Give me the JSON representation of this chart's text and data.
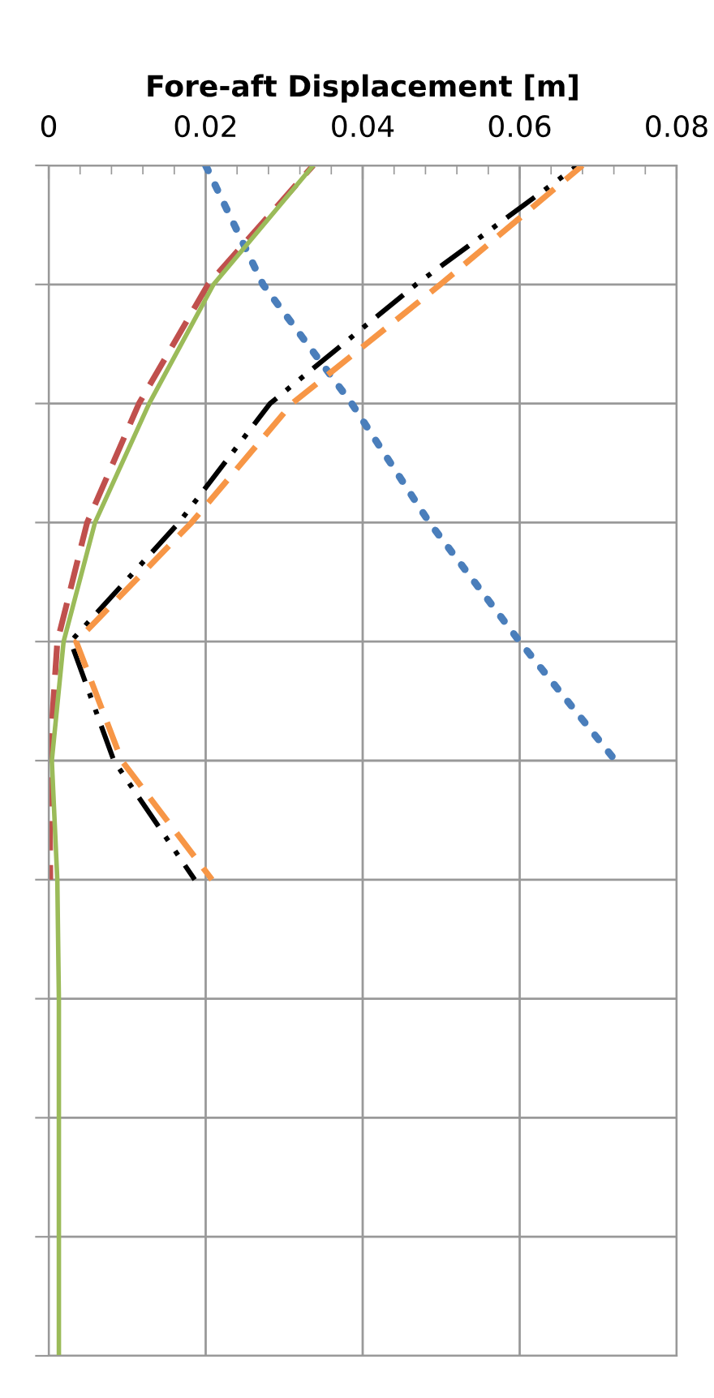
{
  "chart_data": {
    "type": "line",
    "orientation": "horizontal",
    "xlabel": "Fore-aft Displacement [m]",
    "categories": [
      null,
      null,
      null,
      null,
      null,
      null,
      null,
      null,
      null,
      null,
      null
    ],
    "xlim": [
      0,
      0.08
    ],
    "xticks": [
      0,
      0.02,
      0.04,
      0.06,
      0.08
    ],
    "grid": true,
    "marker": "none",
    "series": [
      {
        "color": "#4a7ebb",
        "line_style": "dotted",
        "values": [
          0.02,
          0.0273,
          0.0386,
          0.0485,
          0.06,
          0.0722,
          null,
          null,
          null,
          null,
          null
        ]
      },
      {
        "color": "#c0504d",
        "line_style": "dashed",
        "values": [
          0.0337,
          0.0203,
          0.0115,
          0.0049,
          0.0011,
          0.0001,
          0.0002,
          null,
          null,
          null,
          null
        ]
      },
      {
        "color": "#000000",
        "line_style": "dashdot",
        "values": [
          0.0674,
          0.0468,
          0.0282,
          0.0166,
          0.0028,
          0.0083,
          0.0186,
          null,
          null,
          null,
          null
        ]
      },
      {
        "color": "#f79646",
        "line_style": "dashed",
        "values": [
          0.068,
          0.0499,
          0.031,
          0.0182,
          0.0035,
          0.0093,
          0.0208,
          null,
          null,
          null,
          null
        ]
      },
      {
        "color": "#9bbb59",
        "line_style": "solid",
        "values": [
          0.0337,
          0.021,
          0.0128,
          0.0059,
          0.0019,
          0.0004,
          0.0011,
          0.0013,
          0.0013,
          0.0013,
          0.0013
        ]
      }
    ]
  }
}
